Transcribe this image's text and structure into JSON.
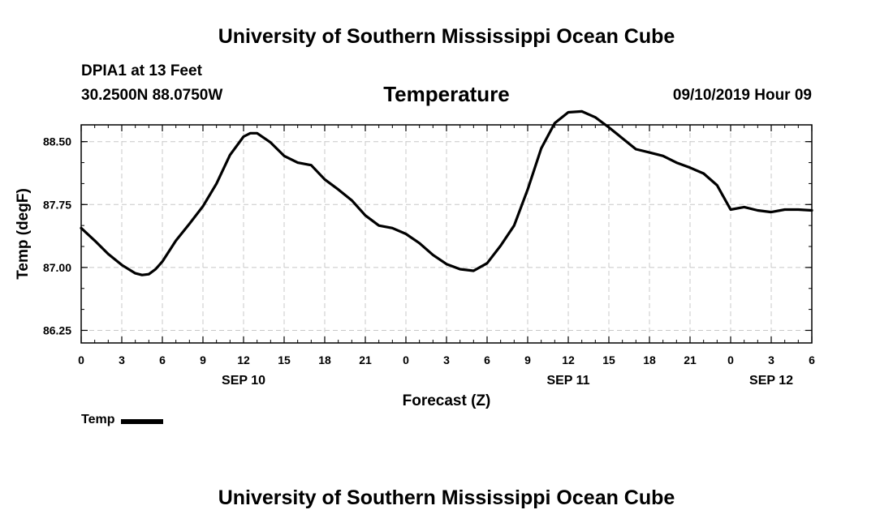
{
  "header": {
    "title": "University of Southern Mississippi Ocean Cube",
    "station_name": "DPIA1 at 13 Feet",
    "station_coords": "30.2500N 88.0750W",
    "timestamp": "09/10/2019 Hour 09"
  },
  "footer": {
    "title": "University of Southern Mississippi Ocean Cube"
  },
  "colors": {
    "line": "#000000",
    "grid": "#c8c8c8",
    "axis": "#000000"
  },
  "chart_data": {
    "type": "line",
    "title": "Temperature",
    "xlabel": "Forecast (Z)",
    "ylabel": "Temp (degF)",
    "grid": true,
    "xlim": [
      0,
      54
    ],
    "ylim": [
      86.1,
      88.7
    ],
    "yticks": [
      86.25,
      87.0,
      87.75,
      88.5
    ],
    "ytick_labels": [
      "86.25",
      "87.00",
      "87.75",
      "88.50"
    ],
    "xticks": [
      0,
      3,
      6,
      9,
      12,
      15,
      18,
      21,
      24,
      27,
      30,
      33,
      36,
      39,
      42,
      45,
      48,
      51,
      54
    ],
    "xtick_labels": [
      "0",
      "3",
      "6",
      "9",
      "12",
      "15",
      "18",
      "21",
      "0",
      "3",
      "6",
      "9",
      "12",
      "15",
      "18",
      "21",
      "0",
      "3",
      "6"
    ],
    "day_labels": [
      {
        "x": 12,
        "label": "SEP 10"
      },
      {
        "x": 36,
        "label": "SEP 11"
      },
      {
        "x": 51,
        "label": "SEP 12"
      }
    ],
    "legend": [
      {
        "name": "Temp",
        "position": "bottom-left"
      }
    ],
    "series": [
      {
        "name": "Temp",
        "x": [
          0,
          1,
          2,
          3,
          4,
          4.5,
          5,
          5.5,
          6,
          7,
          8,
          9,
          10,
          11,
          12,
          12.5,
          13,
          14,
          15,
          16,
          17,
          18,
          19,
          20,
          21,
          22,
          23,
          24,
          25,
          26,
          27,
          28,
          29,
          30,
          31,
          32,
          33,
          34,
          35,
          36,
          37,
          38,
          39,
          40,
          41,
          42,
          43,
          44,
          45,
          46,
          47,
          48,
          49,
          50,
          51,
          52,
          53,
          54
        ],
        "values": [
          87.47,
          87.32,
          87.16,
          87.03,
          86.93,
          86.91,
          86.92,
          86.98,
          87.07,
          87.32,
          87.52,
          87.73,
          88.0,
          88.34,
          88.56,
          88.6,
          88.6,
          88.49,
          88.33,
          88.25,
          88.22,
          88.05,
          87.93,
          87.8,
          87.62,
          87.5,
          87.47,
          87.4,
          87.29,
          87.15,
          87.04,
          86.98,
          86.96,
          87.05,
          87.26,
          87.5,
          87.93,
          88.42,
          88.72,
          88.85,
          88.86,
          88.79,
          88.67,
          88.54,
          88.41,
          88.37,
          88.33,
          88.25,
          88.19,
          88.12,
          87.98,
          87.69,
          87.72,
          87.68,
          87.66,
          87.69,
          87.69,
          87.68
        ]
      }
    ]
  }
}
